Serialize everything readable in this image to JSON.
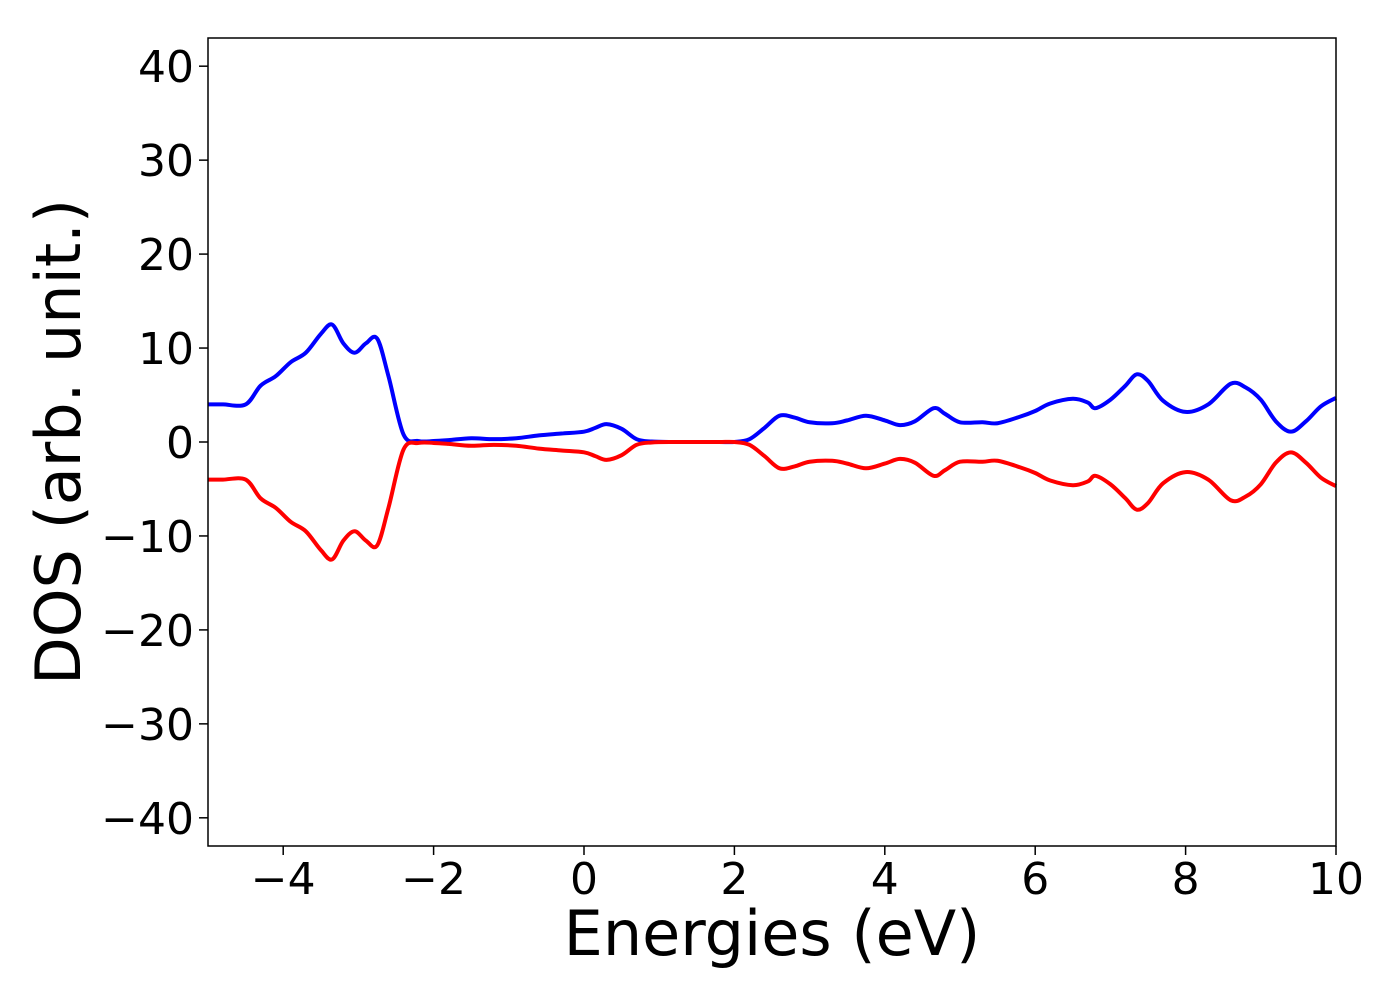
{
  "chart_data": {
    "type": "line",
    "title": "",
    "xlabel": "Energies (eV)",
    "ylabel": "DOS (arb. unit.)",
    "xlim": [
      -5,
      10
    ],
    "ylim": [
      -43,
      43
    ],
    "grid": false,
    "legend": "none",
    "xticks": [
      -4,
      -2,
      0,
      2,
      4,
      6,
      8,
      10
    ],
    "xtick_labels": [
      "−4",
      "−2",
      "0",
      "2",
      "4",
      "6",
      "8",
      "10"
    ],
    "yticks": [
      40,
      30,
      20,
      10,
      0,
      -10,
      -20,
      -30,
      -40
    ],
    "ytick_labels": [
      "40",
      "30",
      "20",
      "10",
      "0",
      "−10",
      "−20",
      "−30",
      "−40"
    ],
    "series": [
      {
        "color": "#0000ff",
        "x": [
          -5.0,
          -4.8,
          -4.5,
          -4.3,
          -4.1,
          -3.9,
          -3.7,
          -3.5,
          -3.35,
          -3.2,
          -3.05,
          -2.9,
          -2.75,
          -2.6,
          -2.4,
          -2.2,
          -2.0,
          -1.8,
          -1.5,
          -1.2,
          -0.9,
          -0.6,
          -0.3,
          0.0,
          0.15,
          0.3,
          0.5,
          0.7,
          0.9,
          1.2,
          1.5,
          1.8,
          2.0,
          2.2,
          2.4,
          2.6,
          2.8,
          3.0,
          3.3,
          3.5,
          3.75,
          4.0,
          4.2,
          4.4,
          4.65,
          4.8,
          5.0,
          5.3,
          5.5,
          5.8,
          6.0,
          6.2,
          6.5,
          6.7,
          6.8,
          7.0,
          7.2,
          7.35,
          7.5,
          7.7,
          8.0,
          8.3,
          8.6,
          8.8,
          9.0,
          9.2,
          9.4,
          9.6,
          9.8,
          10.0
        ],
        "y": [
          4.0,
          4.0,
          4.0,
          6.0,
          7.0,
          8.5,
          9.5,
          11.5,
          12.5,
          10.5,
          9.5,
          10.5,
          11.0,
          7.0,
          0.8,
          0.1,
          0.1,
          0.2,
          0.4,
          0.3,
          0.4,
          0.7,
          0.9,
          1.1,
          1.5,
          1.9,
          1.4,
          0.3,
          0.05,
          0.0,
          0.0,
          0.0,
          0.0,
          0.3,
          1.5,
          2.8,
          2.6,
          2.1,
          2.0,
          2.3,
          2.8,
          2.3,
          1.8,
          2.2,
          3.6,
          3.0,
          2.1,
          2.1,
          2.0,
          2.7,
          3.3,
          4.1,
          4.6,
          4.2,
          3.6,
          4.5,
          6.0,
          7.2,
          6.5,
          4.4,
          3.2,
          4.0,
          6.2,
          5.8,
          4.5,
          2.2,
          1.1,
          2.2,
          3.8,
          4.7
        ]
      },
      {
        "color": "#ff0000",
        "x": [
          -5.0,
          -4.8,
          -4.5,
          -4.3,
          -4.1,
          -3.9,
          -3.7,
          -3.5,
          -3.35,
          -3.2,
          -3.05,
          -2.9,
          -2.75,
          -2.6,
          -2.4,
          -2.2,
          -2.0,
          -1.8,
          -1.5,
          -1.2,
          -0.9,
          -0.6,
          -0.3,
          0.0,
          0.15,
          0.3,
          0.5,
          0.7,
          0.9,
          1.2,
          1.5,
          1.8,
          2.0,
          2.2,
          2.4,
          2.6,
          2.8,
          3.0,
          3.3,
          3.5,
          3.75,
          4.0,
          4.2,
          4.4,
          4.65,
          4.8,
          5.0,
          5.3,
          5.5,
          5.8,
          6.0,
          6.2,
          6.5,
          6.7,
          6.8,
          7.0,
          7.2,
          7.35,
          7.5,
          7.7,
          8.0,
          8.3,
          8.6,
          8.8,
          9.0,
          9.2,
          9.4,
          9.6,
          9.8,
          10.0
        ],
        "y": [
          -4.0,
          -4.0,
          -4.0,
          -6.0,
          -7.0,
          -8.5,
          -9.5,
          -11.5,
          -12.5,
          -10.5,
          -9.5,
          -10.5,
          -11.0,
          -7.0,
          -0.8,
          -0.1,
          -0.1,
          -0.2,
          -0.4,
          -0.3,
          -0.4,
          -0.7,
          -0.9,
          -1.1,
          -1.5,
          -1.9,
          -1.4,
          -0.3,
          -0.05,
          0.0,
          0.0,
          0.0,
          0.0,
          -0.3,
          -1.5,
          -2.8,
          -2.6,
          -2.1,
          -2.0,
          -2.3,
          -2.8,
          -2.3,
          -1.8,
          -2.2,
          -3.6,
          -3.0,
          -2.1,
          -2.1,
          -2.0,
          -2.7,
          -3.3,
          -4.1,
          -4.6,
          -4.2,
          -3.6,
          -4.5,
          -6.0,
          -7.2,
          -6.5,
          -4.4,
          -3.2,
          -4.0,
          -6.2,
          -5.8,
          -4.5,
          -2.2,
          -1.1,
          -2.2,
          -3.8,
          -4.7
        ]
      }
    ]
  }
}
